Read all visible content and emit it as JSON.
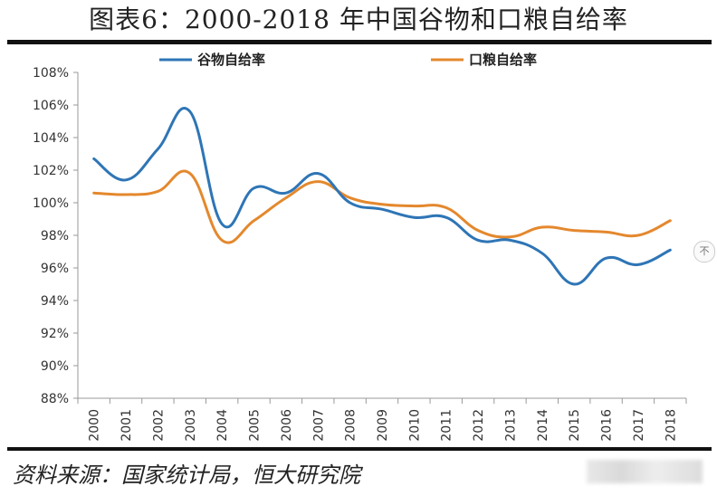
{
  "title": "图表6：2000-2018 年中国谷物和口粮自给率",
  "source": "资料来源：国家统计局，恒大研究院",
  "side_button": "不",
  "chart_data": {
    "type": "line",
    "title": "图表6：2000-2018 年中国谷物和口粮自给率",
    "x": [
      "2000",
      "2001",
      "2002",
      "2003",
      "2004",
      "2005",
      "2006",
      "2007",
      "2008",
      "2009",
      "2010",
      "2011",
      "2012",
      "2013",
      "2014",
      "2015",
      "2016",
      "2017",
      "2018"
    ],
    "ylim": [
      88,
      108
    ],
    "yticks": [
      88,
      90,
      92,
      94,
      96,
      98,
      100,
      102,
      104,
      106,
      108
    ],
    "ytick_labels": [
      "88%",
      "90%",
      "92%",
      "94%",
      "96%",
      "98%",
      "100%",
      "102%",
      "104%",
      "106%",
      "108%"
    ],
    "grid": false,
    "legend_position": "top",
    "series": [
      {
        "name": "谷物自给率",
        "color": "#2e75b6",
        "values": [
          102.7,
          101.4,
          103.3,
          105.6,
          98.7,
          100.9,
          100.6,
          101.8,
          100.0,
          99.6,
          99.1,
          99.1,
          97.7,
          97.7,
          96.9,
          95.0,
          96.6,
          96.2,
          97.1
        ]
      },
      {
        "name": "口粮自给率",
        "color": "#e4882d",
        "values": [
          100.6,
          100.5,
          100.7,
          101.8,
          97.7,
          98.9,
          100.3,
          101.3,
          100.3,
          99.9,
          99.8,
          99.7,
          98.3,
          97.9,
          98.5,
          98.3,
          98.2,
          98.0,
          98.9
        ]
      }
    ]
  }
}
